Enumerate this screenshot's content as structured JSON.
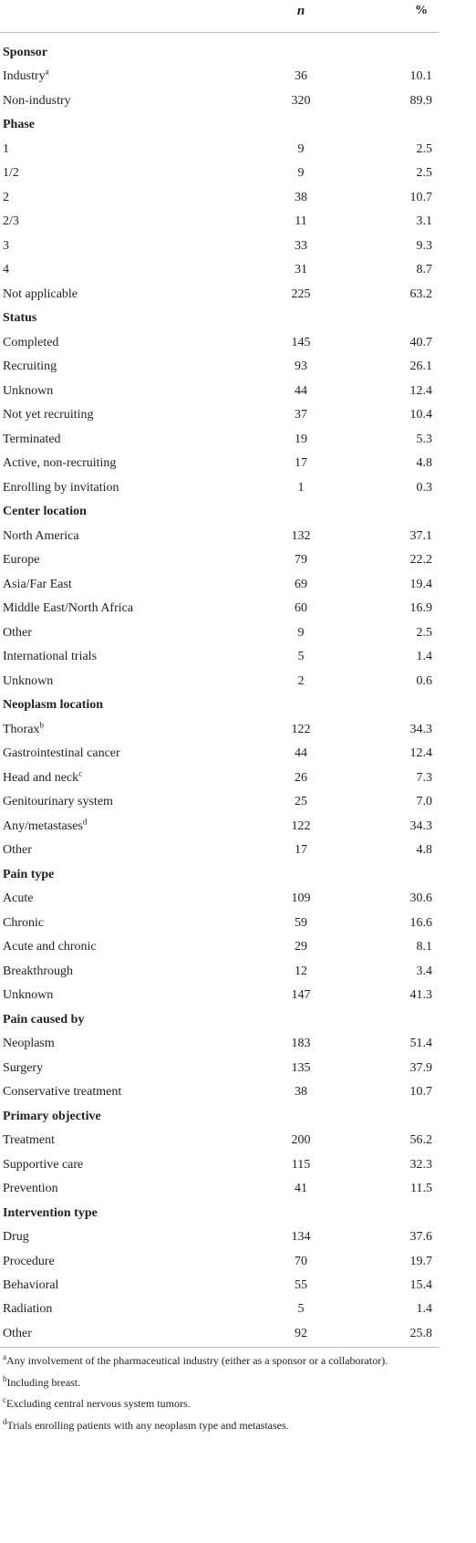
{
  "table": {
    "columns": [
      "n",
      "%"
    ],
    "sections": [
      {
        "title": "Sponsor",
        "rows": [
          {
            "label": "Industry",
            "note": "a",
            "n": 36,
            "pct": "10.1"
          },
          {
            "label": "Non-industry",
            "n": 320,
            "pct": "89.9"
          }
        ]
      },
      {
        "title": "Phase",
        "rows": [
          {
            "label": "1",
            "n": 9,
            "pct": "2.5"
          },
          {
            "label": "1/2",
            "n": 9,
            "pct": "2.5"
          },
          {
            "label": "2",
            "n": 38,
            "pct": "10.7"
          },
          {
            "label": "2/3",
            "n": 11,
            "pct": "3.1"
          },
          {
            "label": "3",
            "n": 33,
            "pct": "9.3"
          },
          {
            "label": "4",
            "n": 31,
            "pct": "8.7"
          },
          {
            "label": "Not applicable",
            "n": 225,
            "pct": "63.2"
          }
        ]
      },
      {
        "title": "Status",
        "rows": [
          {
            "label": "Completed",
            "n": 145,
            "pct": "40.7"
          },
          {
            "label": "Recruiting",
            "n": 93,
            "pct": "26.1"
          },
          {
            "label": "Unknown",
            "n": 44,
            "pct": "12.4"
          },
          {
            "label": "Not yet recruiting",
            "n": 37,
            "pct": "10.4"
          },
          {
            "label": "Terminated",
            "n": 19,
            "pct": "5.3"
          },
          {
            "label": "Active, non-recruiting",
            "n": 17,
            "pct": "4.8"
          },
          {
            "label": "Enrolling by invitation",
            "n": 1,
            "pct": "0.3"
          }
        ]
      },
      {
        "title": "Center location",
        "rows": [
          {
            "label": "North America",
            "n": 132,
            "pct": "37.1"
          },
          {
            "label": "Europe",
            "n": 79,
            "pct": "22.2"
          },
          {
            "label": "Asia/Far East",
            "n": 69,
            "pct": "19.4"
          },
          {
            "label": "Middle East/North Africa",
            "n": 60,
            "pct": "16.9"
          },
          {
            "label": "Other",
            "n": 9,
            "pct": "2.5"
          },
          {
            "label": "International trials",
            "n": 5,
            "pct": "1.4"
          },
          {
            "label": "Unknown",
            "n": 2,
            "pct": "0.6"
          }
        ]
      },
      {
        "title": "Neoplasm location",
        "rows": [
          {
            "label": "Thorax",
            "note": "b",
            "n": 122,
            "pct": "34.3"
          },
          {
            "label": "Gastrointestinal cancer",
            "n": 44,
            "pct": "12.4"
          },
          {
            "label": "Head and neck",
            "note": "c",
            "n": 26,
            "pct": "7.3"
          },
          {
            "label": "Genitourinary system",
            "n": 25,
            "pct": "7.0"
          },
          {
            "label": "Any/metastases",
            "note": "d",
            "n": 122,
            "pct": "34.3"
          },
          {
            "label": "Other",
            "n": 17,
            "pct": "4.8"
          }
        ]
      },
      {
        "title": "Pain type",
        "rows": [
          {
            "label": "Acute",
            "n": 109,
            "pct": "30.6"
          },
          {
            "label": "Chronic",
            "n": 59,
            "pct": "16.6"
          },
          {
            "label": "Acute and chronic",
            "n": 29,
            "pct": "8.1"
          },
          {
            "label": "Breakthrough",
            "n": 12,
            "pct": "3.4"
          },
          {
            "label": "Unknown",
            "n": 147,
            "pct": "41.3"
          }
        ]
      },
      {
        "title": "Pain caused by",
        "rows": [
          {
            "label": "Neoplasm",
            "n": 183,
            "pct": "51.4"
          },
          {
            "label": "Surgery",
            "n": 135,
            "pct": "37.9"
          },
          {
            "label": "Conservative treatment",
            "n": 38,
            "pct": "10.7"
          }
        ]
      },
      {
        "title": "Primary objective",
        "rows": [
          {
            "label": "Treatment",
            "n": 200,
            "pct": "56.2"
          },
          {
            "label": "Supportive care",
            "n": 115,
            "pct": "32.3"
          },
          {
            "label": "Prevention",
            "n": 41,
            "pct": "11.5"
          }
        ]
      },
      {
        "title": "Intervention type",
        "rows": [
          {
            "label": "Drug",
            "n": 134,
            "pct": "37.6"
          },
          {
            "label": "Procedure",
            "n": 70,
            "pct": "19.7"
          },
          {
            "label": "Behavioral",
            "n": 55,
            "pct": "15.4"
          },
          {
            "label": "Radiation",
            "n": 5,
            "pct": "1.4"
          },
          {
            "label": "Other",
            "n": 92,
            "pct": "25.8"
          }
        ]
      }
    ]
  },
  "footnotes": [
    {
      "mark": "a",
      "text": "Any involvement of the pharmaceutical industry (either as a sponsor or a collaborator)."
    },
    {
      "mark": "b",
      "text": "Including breast."
    },
    {
      "mark": "c",
      "text": "Excluding central nervous system tumors."
    },
    {
      "mark": "d",
      "text": "Trials enrolling patients with any neoplasm type and metastases."
    }
  ]
}
